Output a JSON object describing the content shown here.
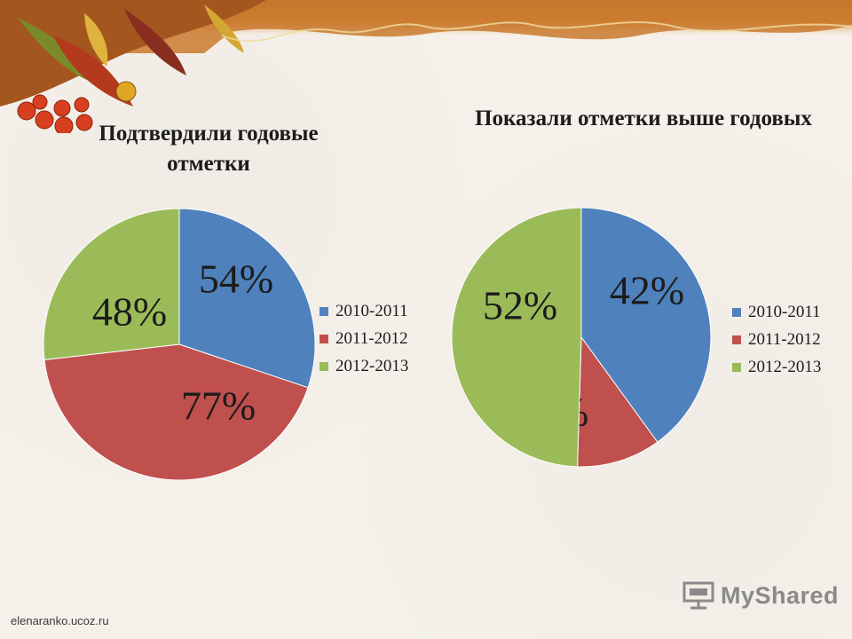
{
  "footer": {
    "site": "elenaranko.ucoz.ru",
    "brand": "MyShared"
  },
  "legend_colors": [
    "#4f81bd",
    "#c0504d",
    "#9bbb59"
  ],
  "chart_data": [
    {
      "type": "pie",
      "title": "Подтвердили годовые отметки",
      "categories": [
        "2010-2011",
        "2011-2012",
        "2012-2013"
      ],
      "values": [
        54,
        77,
        48
      ],
      "labels": [
        "54%",
        "77%",
        "48%"
      ],
      "legend": "right"
    },
    {
      "type": "pie",
      "title": "Показали отметки выше годовых",
      "categories": [
        "2010-2011",
        "2011-2012",
        "2012-2013"
      ],
      "values": [
        42,
        11,
        52
      ],
      "labels": [
        "42%",
        "11%",
        "52%"
      ],
      "legend": "right"
    }
  ]
}
